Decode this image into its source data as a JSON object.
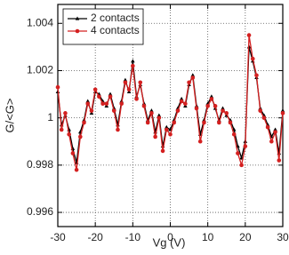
{
  "chart_data": {
    "type": "line",
    "x_label": "Vg (V)",
    "y_label": "G/<G>",
    "x": [
      -30,
      -29,
      -28,
      -27,
      -26,
      -25,
      -24,
      -23,
      -22,
      -21,
      -20,
      -19,
      -18,
      -17,
      -16,
      -15,
      -14,
      -13,
      -12,
      -11,
      -10,
      -9,
      -8,
      -7,
      -6,
      -5,
      -4,
      -3,
      -2,
      -1,
      0,
      1,
      2,
      3,
      4,
      5,
      6,
      7,
      8,
      9,
      10,
      11,
      12,
      13,
      14,
      15,
      16,
      17,
      18,
      19,
      20,
      21,
      22,
      23,
      24,
      25,
      26,
      27,
      28,
      29,
      30
    ],
    "series": [
      {
        "name": "2 contacts",
        "color": "#000000",
        "marker": "triangle",
        "values": [
          1.0011,
          0.9997,
          1.0001,
          0.9995,
          0.9987,
          0.9981,
          0.9994,
          0.9999,
          1.0007,
          1.0002,
          1.0011,
          1.001,
          1.0007,
          1.0005,
          1.001,
          1.0004,
          0.9997,
          1.0007,
          1.0016,
          1.0011,
          1.0024,
          1.0009,
          1.0014,
          1.0006,
          0.9999,
          1.0003,
          0.9994,
          1.0001,
          0.9988,
          0.9996,
          0.9995,
          0.9999,
          1.0004,
          1.0008,
          1.0005,
          1.0014,
          1.0018,
          1.0005,
          0.9993,
          0.9999,
          1.0006,
          1.0009,
          1.0004,
          0.9999,
          1.0004,
          1.0001,
          0.9999,
          0.9995,
          0.9988,
          0.9983,
          0.999,
          1.003,
          1.0024,
          1.0017,
          1.0004,
          1.0001,
          0.9997,
          0.9992,
          0.9995,
          0.9985,
          1.0003
        ]
      },
      {
        "name": "4 contacts",
        "color": "#d42020",
        "marker": "circle",
        "values": [
          1.0013,
          0.9995,
          1.0002,
          0.9993,
          0.9985,
          0.9978,
          0.9992,
          0.9998,
          1.0006,
          1.0003,
          1.0012,
          1.0009,
          1.0006,
          1.0006,
          1.0009,
          1.0003,
          0.9995,
          1.0006,
          1.0015,
          1.0012,
          1.0022,
          1.0008,
          1.0015,
          1.0005,
          0.9998,
          1.0002,
          0.9992,
          1.0,
          0.9986,
          0.9995,
          0.9993,
          0.9998,
          1.0003,
          1.0007,
          1.0006,
          1.0015,
          1.0017,
          1.0004,
          0.999,
          0.9998,
          1.0005,
          1.0008,
          1.0005,
          0.9998,
          1.0003,
          1.0002,
          0.9998,
          0.9993,
          0.9985,
          0.998,
          0.9988,
          1.0035,
          1.0025,
          1.0018,
          1.0003,
          1.0,
          0.9996,
          0.999,
          0.9994,
          0.9982,
          1.0002
        ]
      }
    ],
    "xlim": [
      -30,
      30
    ],
    "xticks": [
      -30,
      -20,
      -10,
      0,
      10,
      20,
      30
    ],
    "ylim": [
      0.9954,
      1.0048
    ],
    "yticks": [
      0.996,
      0.998,
      1,
      1.002,
      1.004
    ],
    "grid": true,
    "legend": "upper left"
  }
}
